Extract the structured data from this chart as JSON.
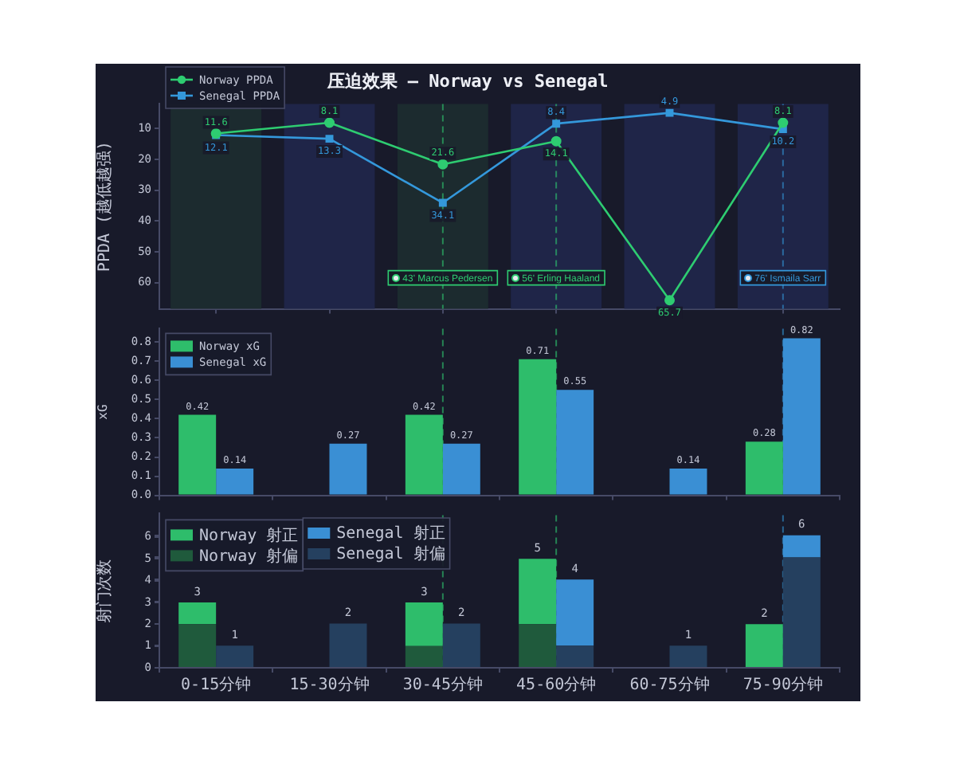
{
  "chart_data": [
    {
      "type": "line",
      "title": "压迫效果 — Norway vs Senegal",
      "ylabel": "PPDA (越低越强)",
      "categories": [
        "0-15分钟",
        "15-30分钟",
        "30-45分钟",
        "45-60分钟",
        "60-75分钟",
        "75-90分钟"
      ],
      "series": [
        {
          "name": "Norway PPDA",
          "color": "#2ecc71",
          "marker": "circle",
          "values": [
            11.6,
            8.1,
            21.6,
            14.1,
            65.7,
            8.1
          ]
        },
        {
          "name": "Senegal PPDA",
          "color": "#3498db",
          "marker": "square",
          "values": [
            12.1,
            13.3,
            34.1,
            8.4,
            4.9,
            10.2
          ]
        }
      ],
      "ylim": [
        68.5,
        2
      ],
      "yticks": [
        10,
        20,
        30,
        40,
        50,
        60
      ],
      "tick_labels": "y",
      "legend": "top left",
      "data_labels": true,
      "line_style": "solid",
      "ref_lines": [
        {
          "axis": "x",
          "value": "30-45分钟",
          "label": "43' Marcus Pedersen",
          "color": "#2ecc71",
          "line_style": "dashed"
        },
        {
          "axis": "x",
          "value": "45-60分钟",
          "label": "56' Erling Haaland",
          "color": "#2ecc71",
          "line_style": "dashed"
        },
        {
          "axis": "x",
          "value": "75-90分钟",
          "label": "76' Ismaila Sarr",
          "color": "#3498db",
          "line_style": "dashed"
        }
      ],
      "bands": [
        {
          "axis": "x",
          "from": "0-15分钟",
          "to": "0-15分钟",
          "color": "#1c2b2f"
        },
        {
          "axis": "x",
          "from": "15-30分钟",
          "to": "15-30分钟",
          "color": "#1f2548"
        },
        {
          "axis": "x",
          "from": "30-45分钟",
          "to": "30-45分钟",
          "color": "#1c2b2f"
        },
        {
          "axis": "x",
          "from": "45-60分钟",
          "to": "45-60分钟",
          "color": "#1f2548"
        },
        {
          "axis": "x",
          "from": "60-75分钟",
          "to": "60-75分钟",
          "color": "#1f2548"
        },
        {
          "axis": "x",
          "from": "75-90分钟",
          "to": "75-90分钟",
          "color": "#1f2548"
        }
      ]
    },
    {
      "type": "bar",
      "ylabel": "xG",
      "categories": [
        "0-15分钟",
        "15-30分钟",
        "30-45分钟",
        "45-60分钟",
        "60-75分钟",
        "75-90分钟"
      ],
      "series": [
        {
          "name": "Norway xG",
          "color": "#2ebd6b",
          "values": [
            0.42,
            null,
            0.42,
            0.71,
            null,
            0.28
          ]
        },
        {
          "name": "Senegal xG",
          "color": "#3a8fd4",
          "values": [
            0.14,
            0.27,
            0.27,
            0.55,
            0.14,
            0.82
          ]
        }
      ],
      "ylim": [
        0,
        0.87
      ],
      "yticks": [
        {
          "value": 0,
          "label": "0.0"
        },
        0.1,
        0.2,
        0.3,
        0.4,
        0.5,
        0.6,
        0.7,
        0.8
      ],
      "tick_labels": "y",
      "legend": "top left",
      "data_labels": true,
      "ref_lines": [
        {
          "axis": "x",
          "value": "30-45分钟",
          "color": "#2ecc71",
          "line_style": "dashed"
        },
        {
          "axis": "x",
          "value": "45-60分钟",
          "color": "#2ecc71",
          "line_style": "dashed"
        },
        {
          "axis": "x",
          "value": "75-90分钟",
          "color": "#3498db",
          "line_style": "dashed"
        }
      ]
    },
    {
      "type": "bar",
      "stacked": true,
      "ylabel": "射门次数",
      "categories": [
        "0-15分钟",
        "15-30分钟",
        "30-45分钟",
        "45-60分钟",
        "60-75分钟",
        "75-90分钟"
      ],
      "series": [
        {
          "name": "Norway 射偏",
          "color": "#1f5a3c",
          "values": [
            2,
            0,
            1,
            2,
            0,
            0
          ]
        },
        {
          "name": "Norway 射正",
          "color": "#2ebd6b",
          "values": [
            1,
            0,
            2,
            3,
            0,
            2
          ]
        }
      ],
      "ylim": [
        0,
        7
      ],
      "yticks": [
        0,
        1,
        2,
        3,
        4,
        5,
        6
      ],
      "legend": "top left",
      "totals": [
        "3",
        null,
        "3",
        "5",
        null,
        "2"
      ],
      "ref_lines": [
        {
          "axis": "x",
          "value": "30-45分钟",
          "color": "#2ecc71",
          "line_style": "dashed"
        },
        {
          "axis": "x",
          "value": "45-60分钟",
          "color": "#2ecc71",
          "line_style": "dashed"
        },
        {
          "axis": "x",
          "value": "75-90分钟",
          "color": "#3498db",
          "line_style": "dashed"
        }
      ]
    },
    {
      "type": "bar",
      "stacked": true,
      "categories": [
        "0-15分钟",
        "15-30分钟",
        "30-45分钟",
        "45-60分钟",
        "60-75分钟",
        "75-90分钟"
      ],
      "series": [
        {
          "name": "Senegal 射偏",
          "color": "#25405f",
          "values": [
            1,
            2,
            2,
            1,
            1,
            5
          ]
        },
        {
          "name": "Senegal 射正",
          "color": "#3a8fd4",
          "values": [
            0,
            0,
            0,
            3,
            0,
            1
          ]
        }
      ],
      "ylim": [
        0,
        7
      ],
      "yticks": [
        0,
        1,
        2,
        3,
        4,
        5,
        6
      ],
      "tick_labels": false,
      "legend": "top left",
      "totals": [
        "1",
        "2",
        "2",
        "4",
        "1",
        "6"
      ]
    }
  ]
}
